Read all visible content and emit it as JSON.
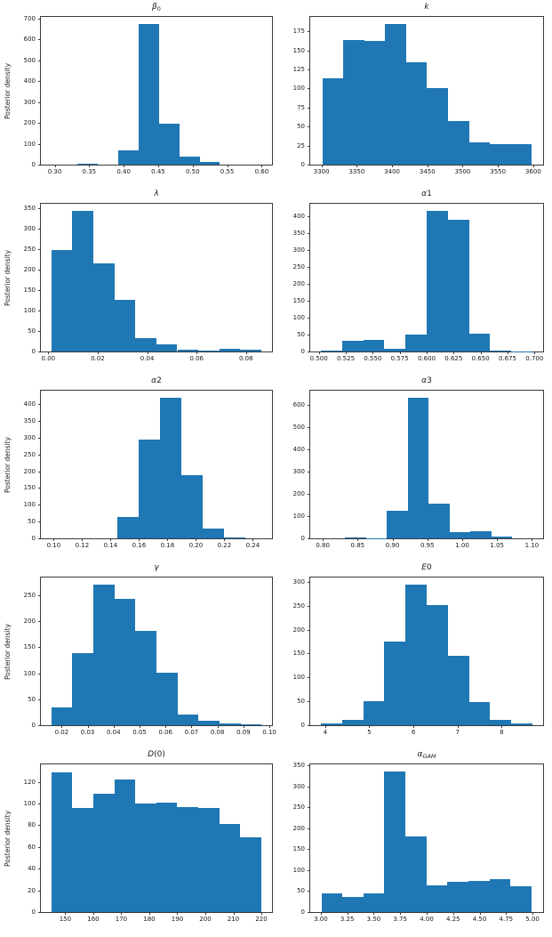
{
  "figure": {
    "ylabel": "Posterior density",
    "bar_color": "#1f77b4",
    "background": "#ffffff",
    "layout": "5 rows x 2 columns of posterior histograms"
  },
  "chart_data": [
    {
      "type": "bar",
      "variant": "histogram",
      "param": "beta0",
      "title": "β0",
      "title_segments": [
        {
          "t": "β",
          "it": true
        },
        {
          "t": "0",
          "sub": true
        }
      ],
      "ylabel": "Posterior density",
      "bin_edges": [
        0.333,
        0.3625,
        0.392,
        0.4215,
        0.451,
        0.4805,
        0.51,
        0.5395
      ],
      "values": [
        3,
        0,
        68,
        675,
        197,
        40,
        14
      ],
      "xlim": [
        0.28,
        0.615
      ],
      "ylim": [
        0,
        708
      ],
      "xtick_values": [
        0.3,
        0.35,
        0.4,
        0.45,
        0.5,
        0.55,
        0.6
      ],
      "xtick_labels": [
        "0.30",
        "0.35",
        "0.40",
        "0.45",
        "0.50",
        "0.55",
        "0.60"
      ],
      "ytick_values": [
        0,
        100,
        200,
        300,
        400,
        500,
        600,
        700
      ],
      "ytick_labels": [
        "0",
        "100",
        "200",
        "300",
        "400",
        "500",
        "600",
        "700"
      ]
    },
    {
      "type": "bar",
      "variant": "histogram",
      "param": "k",
      "title": "k",
      "title_segments": [
        {
          "t": "k",
          "it": true
        }
      ],
      "ylabel": "",
      "bin_edges": [
        3301,
        3330.7,
        3360.4,
        3390.1,
        3419.8,
        3449.5,
        3479.2,
        3508.9,
        3538.6,
        3568.3,
        3598
      ],
      "values": [
        113,
        164,
        162,
        185,
        134,
        101,
        57,
        29,
        27,
        27
      ],
      "xlim": [
        3284,
        3614
      ],
      "ylim": [
        0,
        194
      ],
      "xtick_values": [
        3300,
        3350,
        3400,
        3450,
        3500,
        3550,
        3600
      ],
      "xtick_labels": [
        "3300",
        "3350",
        "3400",
        "3450",
        "3500",
        "3550",
        "3600"
      ],
      "ytick_values": [
        0,
        25,
        50,
        75,
        100,
        125,
        150,
        175
      ],
      "ytick_labels": [
        "0",
        "25",
        "50",
        "75",
        "100",
        "125",
        "150",
        "175"
      ]
    },
    {
      "type": "bar",
      "variant": "histogram",
      "param": "lambda",
      "title": "λ",
      "title_segments": [
        {
          "t": "λ",
          "it": true
        }
      ],
      "ylabel": "Posterior density",
      "bin_edges": [
        0.0012,
        0.0097,
        0.0182,
        0.0267,
        0.0352,
        0.0437,
        0.0522,
        0.0607,
        0.0692,
        0.0777,
        0.0862
      ],
      "values": [
        248,
        343,
        215,
        126,
        32,
        17,
        4,
        2,
        6,
        4
      ],
      "xlim": [
        -0.003,
        0.0905
      ],
      "ylim": [
        0,
        360
      ],
      "xtick_values": [
        0.0,
        0.02,
        0.04,
        0.06,
        0.08
      ],
      "xtick_labels": [
        "0.00",
        "0.02",
        "0.04",
        "0.06",
        "0.08"
      ],
      "ytick_values": [
        0,
        50,
        100,
        150,
        200,
        250,
        300,
        350
      ],
      "ytick_labels": [
        "0",
        "50",
        "100",
        "150",
        "200",
        "250",
        "300",
        "350"
      ]
    },
    {
      "type": "bar",
      "variant": "histogram",
      "param": "alpha1",
      "title": "α1",
      "title_segments": [
        {
          "t": "α",
          "it": true
        },
        {
          "t": "1"
        }
      ],
      "ylabel": "",
      "bin_edges": [
        0.502,
        0.5216,
        0.5412,
        0.5608,
        0.5804,
        0.6,
        0.6196,
        0.6392,
        0.6588,
        0.6784,
        0.698
      ],
      "values": [
        3,
        32,
        33,
        9,
        51,
        416,
        390,
        52,
        3,
        1
      ],
      "xlim": [
        0.492,
        0.708
      ],
      "ylim": [
        0,
        437
      ],
      "xtick_values": [
        0.5,
        0.525,
        0.55,
        0.575,
        0.6,
        0.625,
        0.65,
        0.675,
        0.7
      ],
      "xtick_labels": [
        "0.500",
        "0.525",
        "0.550",
        "0.575",
        "0.600",
        "0.625",
        "0.650",
        "0.675",
        "0.700"
      ],
      "ytick_values": [
        0,
        50,
        100,
        150,
        200,
        250,
        300,
        350,
        400
      ],
      "ytick_labels": [
        "0",
        "50",
        "100",
        "150",
        "200",
        "250",
        "300",
        "350",
        "400"
      ]
    },
    {
      "type": "bar",
      "variant": "histogram",
      "param": "alpha2",
      "title": "α2",
      "title_segments": [
        {
          "t": "α",
          "it": true
        },
        {
          "t": "2"
        }
      ],
      "ylabel": "Posterior density",
      "bin_edges": [
        0.145,
        0.16,
        0.175,
        0.19,
        0.205,
        0.22,
        0.235
      ],
      "values": [
        64,
        293,
        419,
        188,
        30,
        2
      ],
      "xlim": [
        0.091,
        0.2535
      ],
      "ylim": [
        0,
        440
      ],
      "xtick_values": [
        0.1,
        0.12,
        0.14,
        0.16,
        0.18,
        0.2,
        0.22,
        0.24
      ],
      "xtick_labels": [
        "0.10",
        "0.12",
        "0.14",
        "0.16",
        "0.18",
        "0.20",
        "0.22",
        "0.24"
      ],
      "ytick_values": [
        0,
        50,
        100,
        150,
        200,
        250,
        300,
        350,
        400
      ],
      "ytick_labels": [
        "0",
        "50",
        "100",
        "150",
        "200",
        "250",
        "300",
        "350",
        "400"
      ]
    },
    {
      "type": "bar",
      "variant": "histogram",
      "param": "alpha3",
      "title": "α3",
      "title_segments": [
        {
          "t": "α",
          "it": true
        },
        {
          "t": "3"
        }
      ],
      "ylabel": "",
      "bin_edges": [
        0.832,
        0.862,
        0.892,
        0.922,
        0.952,
        0.982,
        1.012,
        1.042,
        1.072
      ],
      "values": [
        3,
        2,
        125,
        632,
        155,
        27,
        34,
        10
      ],
      "xlim": [
        0.782,
        1.116
      ],
      "ylim": [
        0,
        664
      ],
      "xtick_values": [
        0.8,
        0.85,
        0.9,
        0.95,
        1.0,
        1.05,
        1.1
      ],
      "xtick_labels": [
        "0.80",
        "0.85",
        "0.90",
        "0.95",
        "1.00",
        "1.05",
        "1.10"
      ],
      "ytick_values": [
        0,
        100,
        200,
        300,
        400,
        500,
        600
      ],
      "ytick_labels": [
        "0",
        "100",
        "200",
        "300",
        "400",
        "500",
        "600"
      ]
    },
    {
      "type": "bar",
      "variant": "histogram",
      "param": "gamma",
      "title": "γ",
      "title_segments": [
        {
          "t": "γ",
          "it": true
        }
      ],
      "ylabel": "Posterior density",
      "bin_edges": [
        0.016,
        0.0241,
        0.0322,
        0.0403,
        0.0484,
        0.0565,
        0.0646,
        0.0727,
        0.0808,
        0.0889,
        0.097
      ],
      "values": [
        34,
        138,
        270,
        243,
        182,
        101,
        21,
        8,
        3,
        2
      ],
      "xlim": [
        0.012,
        0.101
      ],
      "ylim": [
        0,
        284
      ],
      "xtick_values": [
        0.02,
        0.03,
        0.04,
        0.05,
        0.06,
        0.07,
        0.08,
        0.09,
        0.1
      ],
      "xtick_labels": [
        "0.02",
        "0.03",
        "0.04",
        "0.05",
        "0.06",
        "0.07",
        "0.08",
        "0.09",
        "0.10"
      ],
      "ytick_values": [
        0,
        50,
        100,
        150,
        200,
        250
      ],
      "ytick_labels": [
        "0",
        "50",
        "100",
        "150",
        "200",
        "250"
      ]
    },
    {
      "type": "bar",
      "variant": "histogram",
      "param": "E0",
      "title": "E0",
      "title_segments": [
        {
          "t": "E",
          "it": true
        },
        {
          "t": "0"
        }
      ],
      "ylabel": "",
      "bin_edges": [
        3.9,
        4.38,
        4.86,
        5.34,
        5.82,
        6.3,
        6.78,
        7.26,
        7.74,
        8.22,
        8.7
      ],
      "values": [
        3,
        12,
        50,
        175,
        294,
        252,
        145,
        48,
        11,
        4
      ],
      "xlim": [
        3.66,
        8.94
      ],
      "ylim": [
        0,
        309
      ],
      "xtick_values": [
        4,
        5,
        6,
        7,
        8
      ],
      "xtick_labels": [
        "4",
        "5",
        "6",
        "7",
        "8"
      ],
      "ytick_values": [
        0,
        50,
        100,
        150,
        200,
        250,
        300
      ],
      "ytick_labels": [
        "0",
        "50",
        "100",
        "150",
        "200",
        "250",
        "300"
      ]
    },
    {
      "type": "bar",
      "variant": "histogram",
      "param": "D0",
      "title": "D(0)",
      "title_segments": [
        {
          "t": "D",
          "it": true
        },
        {
          "t": "(0)"
        }
      ],
      "ylabel": "Posterior density",
      "bin_edges": [
        145,
        152.5,
        160,
        167.5,
        175,
        182.5,
        190,
        197.5,
        205,
        212.5,
        220
      ],
      "values": [
        129,
        96,
        109,
        122,
        100,
        101,
        97,
        96,
        81,
        69
      ],
      "xlim": [
        141.3,
        223.8
      ],
      "ylim": [
        0,
        136
      ],
      "xtick_values": [
        150,
        160,
        170,
        180,
        190,
        200,
        210,
        220
      ],
      "xtick_labels": [
        "150",
        "160",
        "170",
        "180",
        "190",
        "200",
        "210",
        "220"
      ],
      "ytick_values": [
        0,
        20,
        40,
        60,
        80,
        100,
        120
      ],
      "ytick_labels": [
        "0",
        "20",
        "40",
        "60",
        "80",
        "100",
        "120"
      ]
    },
    {
      "type": "bar",
      "variant": "histogram",
      "param": "alphaGAM",
      "title": "αGAM",
      "title_segments": [
        {
          "t": "α",
          "it": true
        },
        {
          "t": "GAM",
          "it": true,
          "sub": true
        }
      ],
      "ylabel": "",
      "bin_edges": [
        3.005,
        3.2035,
        3.402,
        3.6005,
        3.799,
        3.9975,
        4.196,
        4.3945,
        4.593,
        4.7915,
        4.99
      ],
      "values": [
        45,
        37,
        45,
        335,
        181,
        63,
        73,
        75,
        79,
        62
      ],
      "xlim": [
        2.9,
        5.1
      ],
      "ylim": [
        0,
        352
      ],
      "xtick_values": [
        3.0,
        3.25,
        3.5,
        3.75,
        4.0,
        4.25,
        4.5,
        4.75,
        5.0
      ],
      "xtick_labels": [
        "3.00",
        "3.25",
        "3.50",
        "3.75",
        "4.00",
        "4.25",
        "4.50",
        "4.75",
        "5.00"
      ],
      "ytick_values": [
        0,
        50,
        100,
        150,
        200,
        250,
        300,
        350
      ],
      "ytick_labels": [
        "0",
        "50",
        "100",
        "150",
        "200",
        "250",
        "300",
        "350"
      ]
    }
  ]
}
